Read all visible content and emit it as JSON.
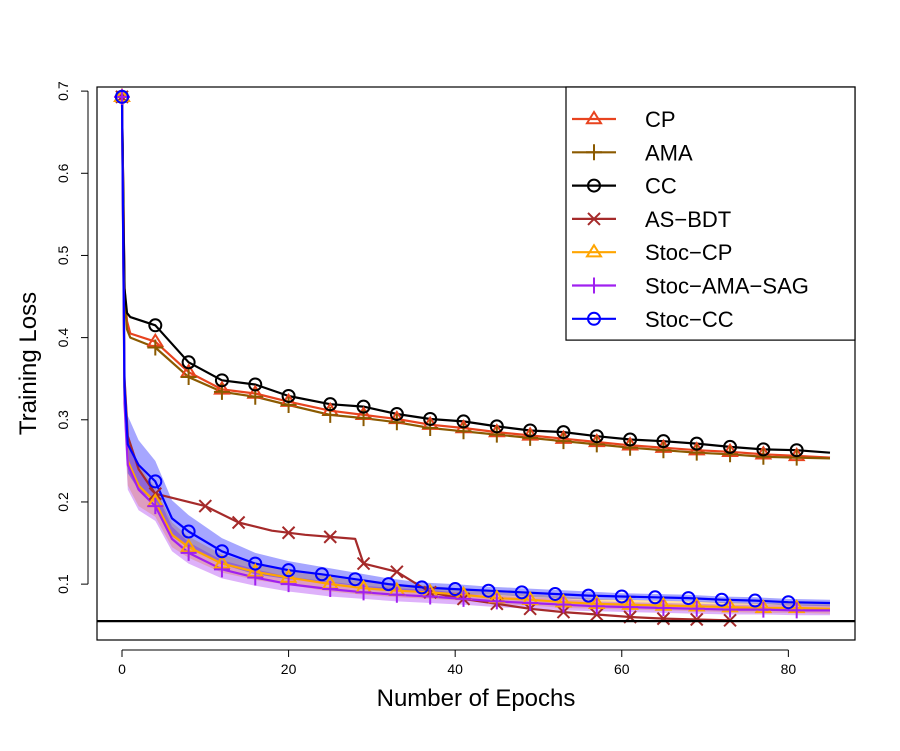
{
  "chart_data": {
    "type": "line",
    "title": "",
    "xlabel": "Number of Epochs",
    "ylabel": "Training Loss",
    "xlim": [
      -3,
      88
    ],
    "ylim": [
      0.032,
      0.705
    ],
    "xticks": [
      0,
      20,
      40,
      60,
      80
    ],
    "yticks": [
      0.1,
      0.2,
      0.3,
      0.4,
      0.5,
      0.6,
      0.7
    ],
    "grid": false,
    "legend_position": "top-right",
    "reference_line": {
      "y": 0.055,
      "color": "#000000"
    },
    "series": [
      {
        "name": "CP",
        "color": "#e8431f",
        "marker": "triangle",
        "x": [
          0,
          0.3,
          0.6,
          1,
          4,
          8,
          12,
          16,
          20,
          25,
          29,
          33,
          37,
          41,
          45,
          49,
          53,
          57,
          61,
          65,
          69,
          73,
          77,
          81,
          85
        ],
        "y": [
          0.693,
          0.46,
          0.42,
          0.405,
          0.395,
          0.358,
          0.337,
          0.332,
          0.322,
          0.311,
          0.306,
          0.301,
          0.294,
          0.29,
          0.285,
          0.281,
          0.277,
          0.273,
          0.269,
          0.266,
          0.263,
          0.261,
          0.258,
          0.256,
          0.254
        ],
        "marker_x": [
          0,
          4,
          8,
          12,
          16,
          20,
          25,
          29,
          33,
          37,
          41,
          45,
          49,
          53,
          57,
          61,
          65,
          69,
          73,
          77,
          81
        ]
      },
      {
        "name": "AMA",
        "color": "#8b5a00",
        "marker": "plus",
        "x": [
          0,
          0.3,
          0.6,
          1,
          4,
          8,
          12,
          16,
          20,
          25,
          29,
          33,
          37,
          41,
          45,
          49,
          53,
          57,
          61,
          65,
          69,
          73,
          77,
          81,
          85
        ],
        "y": [
          0.693,
          0.45,
          0.41,
          0.4,
          0.388,
          0.352,
          0.334,
          0.328,
          0.318,
          0.306,
          0.302,
          0.297,
          0.29,
          0.286,
          0.282,
          0.278,
          0.274,
          0.27,
          0.266,
          0.263,
          0.26,
          0.258,
          0.255,
          0.254,
          0.253
        ],
        "marker_x": [
          0,
          4,
          8,
          12,
          16,
          20,
          25,
          29,
          33,
          37,
          41,
          45,
          49,
          53,
          57,
          61,
          65,
          69,
          73,
          77,
          81
        ]
      },
      {
        "name": "CC",
        "color": "#000000",
        "marker": "circle",
        "x": [
          0,
          0.3,
          0.6,
          1,
          4,
          8,
          12,
          16,
          20,
          25,
          29,
          33,
          37,
          41,
          45,
          49,
          53,
          57,
          61,
          65,
          69,
          73,
          77,
          81,
          85
        ],
        "y": [
          0.693,
          0.46,
          0.43,
          0.425,
          0.415,
          0.37,
          0.348,
          0.343,
          0.329,
          0.319,
          0.316,
          0.307,
          0.301,
          0.298,
          0.292,
          0.287,
          0.285,
          0.28,
          0.276,
          0.274,
          0.271,
          0.267,
          0.264,
          0.263,
          0.26
        ],
        "marker_x": [
          0,
          4,
          8,
          12,
          16,
          20,
          25,
          29,
          33,
          37,
          41,
          45,
          49,
          53,
          57,
          61,
          65,
          69,
          73,
          77,
          81
        ]
      },
      {
        "name": "AS−BDT",
        "color": "#a52a2a",
        "marker": "cross",
        "x": [
          0,
          0.3,
          0.7,
          2,
          4,
          6,
          10,
          14,
          18,
          22,
          28,
          29,
          33,
          37,
          41,
          45,
          49,
          53,
          57,
          61,
          65,
          69,
          73
        ],
        "y": [
          0.693,
          0.35,
          0.28,
          0.24,
          0.21,
          0.205,
          0.195,
          0.175,
          0.165,
          0.16,
          0.155,
          0.125,
          0.115,
          0.09,
          0.082,
          0.076,
          0.07,
          0.066,
          0.063,
          0.06,
          0.058,
          0.057,
          0.056
        ],
        "marker_x": [
          0,
          4,
          10,
          14,
          20,
          25,
          29,
          33,
          37,
          41,
          45,
          49,
          53,
          57,
          61,
          65,
          69,
          73
        ]
      },
      {
        "name": "Stoc−CP",
        "color": "#ffa500",
        "marker": "triangle",
        "x": [
          0,
          0.3,
          0.7,
          2,
          4,
          6,
          8,
          12,
          16,
          20,
          25,
          29,
          33,
          37,
          41,
          45,
          49,
          53,
          57,
          61,
          65,
          69,
          73,
          77,
          81,
          85
        ],
        "y": [
          0.693,
          0.33,
          0.25,
          0.22,
          0.2,
          0.16,
          0.145,
          0.125,
          0.115,
          0.108,
          0.1,
          0.095,
          0.092,
          0.09,
          0.087,
          0.083,
          0.081,
          0.078,
          0.076,
          0.075,
          0.074,
          0.073,
          0.072,
          0.071,
          0.071,
          0.07
        ],
        "band": [
          0.009,
          0.03,
          0.03,
          0.025,
          0.018,
          0.015,
          0.013,
          0.011,
          0.01,
          0.009,
          0.009,
          0.008,
          0.008,
          0.008,
          0.007,
          0.007,
          0.007,
          0.007,
          0.006,
          0.006,
          0.006,
          0.006,
          0.006,
          0.006,
          0.006,
          0.006
        ],
        "marker_x": [
          0,
          4,
          8,
          12,
          16,
          20,
          25,
          29,
          33,
          37,
          41,
          45,
          49,
          53,
          57,
          61,
          65,
          69,
          73,
          77,
          81
        ]
      },
      {
        "name": "Stoc−AMA−SAG",
        "color": "#a020f0",
        "marker": "plus",
        "x": [
          0,
          0.3,
          0.7,
          2,
          4,
          6,
          8,
          12,
          16,
          20,
          25,
          29,
          33,
          37,
          41,
          45,
          49,
          53,
          57,
          61,
          65,
          69,
          73,
          77,
          81,
          85
        ],
        "y": [
          0.693,
          0.32,
          0.245,
          0.215,
          0.195,
          0.155,
          0.138,
          0.118,
          0.108,
          0.1,
          0.094,
          0.09,
          0.087,
          0.085,
          0.082,
          0.079,
          0.077,
          0.075,
          0.073,
          0.072,
          0.071,
          0.07,
          0.069,
          0.069,
          0.068,
          0.068
        ],
        "band": [
          0.009,
          0.03,
          0.03,
          0.025,
          0.018,
          0.015,
          0.013,
          0.011,
          0.01,
          0.009,
          0.009,
          0.008,
          0.008,
          0.008,
          0.007,
          0.007,
          0.007,
          0.007,
          0.006,
          0.006,
          0.006,
          0.006,
          0.006,
          0.006,
          0.006,
          0.006
        ],
        "marker_x": [
          0,
          4,
          8,
          12,
          16,
          20,
          25,
          29,
          33,
          37,
          41,
          45,
          49,
          53,
          57,
          61,
          65,
          69,
          73,
          77,
          81
        ]
      },
      {
        "name": "Stoc−CC",
        "color": "#0000ff",
        "marker": "circle",
        "x": [
          0,
          0.3,
          0.7,
          2,
          4,
          6,
          8,
          12,
          16,
          20,
          24,
          28,
          32,
          36,
          40,
          44,
          48,
          52,
          56,
          60,
          64,
          68,
          72,
          76,
          80,
          85
        ],
        "y": [
          0.693,
          0.34,
          0.27,
          0.245,
          0.225,
          0.18,
          0.164,
          0.14,
          0.125,
          0.117,
          0.112,
          0.106,
          0.1,
          0.096,
          0.094,
          0.092,
          0.09,
          0.088,
          0.086,
          0.085,
          0.084,
          0.083,
          0.081,
          0.08,
          0.078,
          0.077
        ],
        "band": [
          0.009,
          0.035,
          0.035,
          0.03,
          0.025,
          0.022,
          0.02,
          0.016,
          0.013,
          0.011,
          0.009,
          0.008,
          0.007,
          0.006,
          0.006,
          0.005,
          0.005,
          0.005,
          0.005,
          0.004,
          0.004,
          0.004,
          0.004,
          0.004,
          0.004,
          0.004
        ],
        "marker_x": [
          0,
          4,
          8,
          12,
          16,
          20,
          24,
          28,
          32,
          36,
          40,
          44,
          48,
          52,
          56,
          60,
          64,
          68,
          72,
          76,
          80
        ]
      }
    ]
  }
}
